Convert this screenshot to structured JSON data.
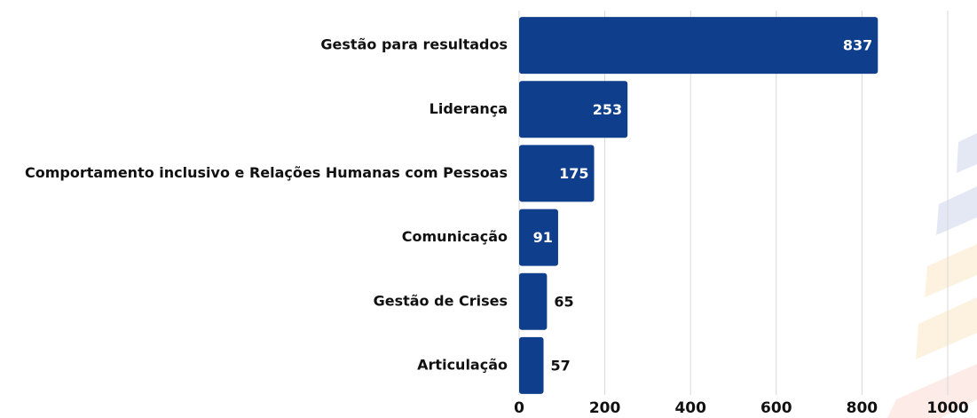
{
  "chart_data": {
    "type": "barh",
    "categories": [
      "Gestão para resultados",
      "Liderança",
      "Comportamento inclusivo e Relações Humanas com Pessoas",
      "Comunicação",
      "Gestão de Crises",
      "Articulação"
    ],
    "values": [
      837,
      253,
      175,
      91,
      65,
      57
    ],
    "color": "#0f3f8c",
    "xlim": [
      0,
      1000
    ],
    "xticks": [
      0,
      200,
      400,
      600,
      800,
      1000
    ],
    "grid": true
  }
}
